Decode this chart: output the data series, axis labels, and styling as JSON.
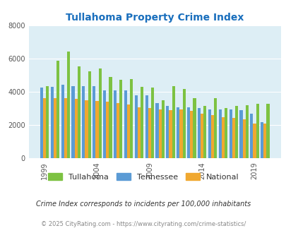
{
  "title": "Tullahoma Property Crime Index",
  "title_color": "#1a6fbd",
  "years": [
    1999,
    2000,
    2001,
    2002,
    2003,
    2004,
    2005,
    2006,
    2007,
    2008,
    2009,
    2010,
    2011,
    2012,
    2013,
    2014,
    2015,
    2016,
    2017,
    2018,
    2019,
    2020
  ],
  "tullahoma": [
    4350,
    5900,
    6450,
    5550,
    5250,
    5400,
    4900,
    4750,
    4800,
    4300,
    4250,
    3500,
    4350,
    4200,
    3650,
    3150,
    3650,
    3050,
    3150,
    3200,
    3300,
    3300
  ],
  "tennessee": [
    4250,
    4300,
    4450,
    4350,
    4350,
    4350,
    4100,
    4100,
    4100,
    3800,
    3800,
    3350,
    3150,
    3100,
    3100,
    3050,
    2950,
    2950,
    2950,
    2900,
    2700,
    2200
  ],
  "national": [
    3650,
    3650,
    3650,
    3600,
    3500,
    3450,
    3400,
    3350,
    3250,
    3100,
    3050,
    2950,
    2900,
    2950,
    2850,
    2700,
    2600,
    2500,
    2450,
    2350,
    2100,
    2100
  ],
  "bar_colors_order": [
    "#5b9bd5",
    "#f0a830",
    "#7dc242"
  ],
  "legend_colors": [
    "#7dc242",
    "#5b9bd5",
    "#f0a830"
  ],
  "ylim": [
    0,
    8000
  ],
  "yticks": [
    0,
    2000,
    4000,
    6000,
    8000
  ],
  "bg_color": "#ddeef5",
  "grid_color": "#ffffff",
  "legend_labels": [
    "Tullahoma",
    "Tennessee",
    "National"
  ],
  "tick_years": [
    1999,
    2004,
    2009,
    2014,
    2019
  ],
  "footnote1": "Crime Index corresponds to incidents per 100,000 inhabitants",
  "footnote2": "© 2025 CityRating.com - https://www.cityrating.com/crime-statistics/"
}
